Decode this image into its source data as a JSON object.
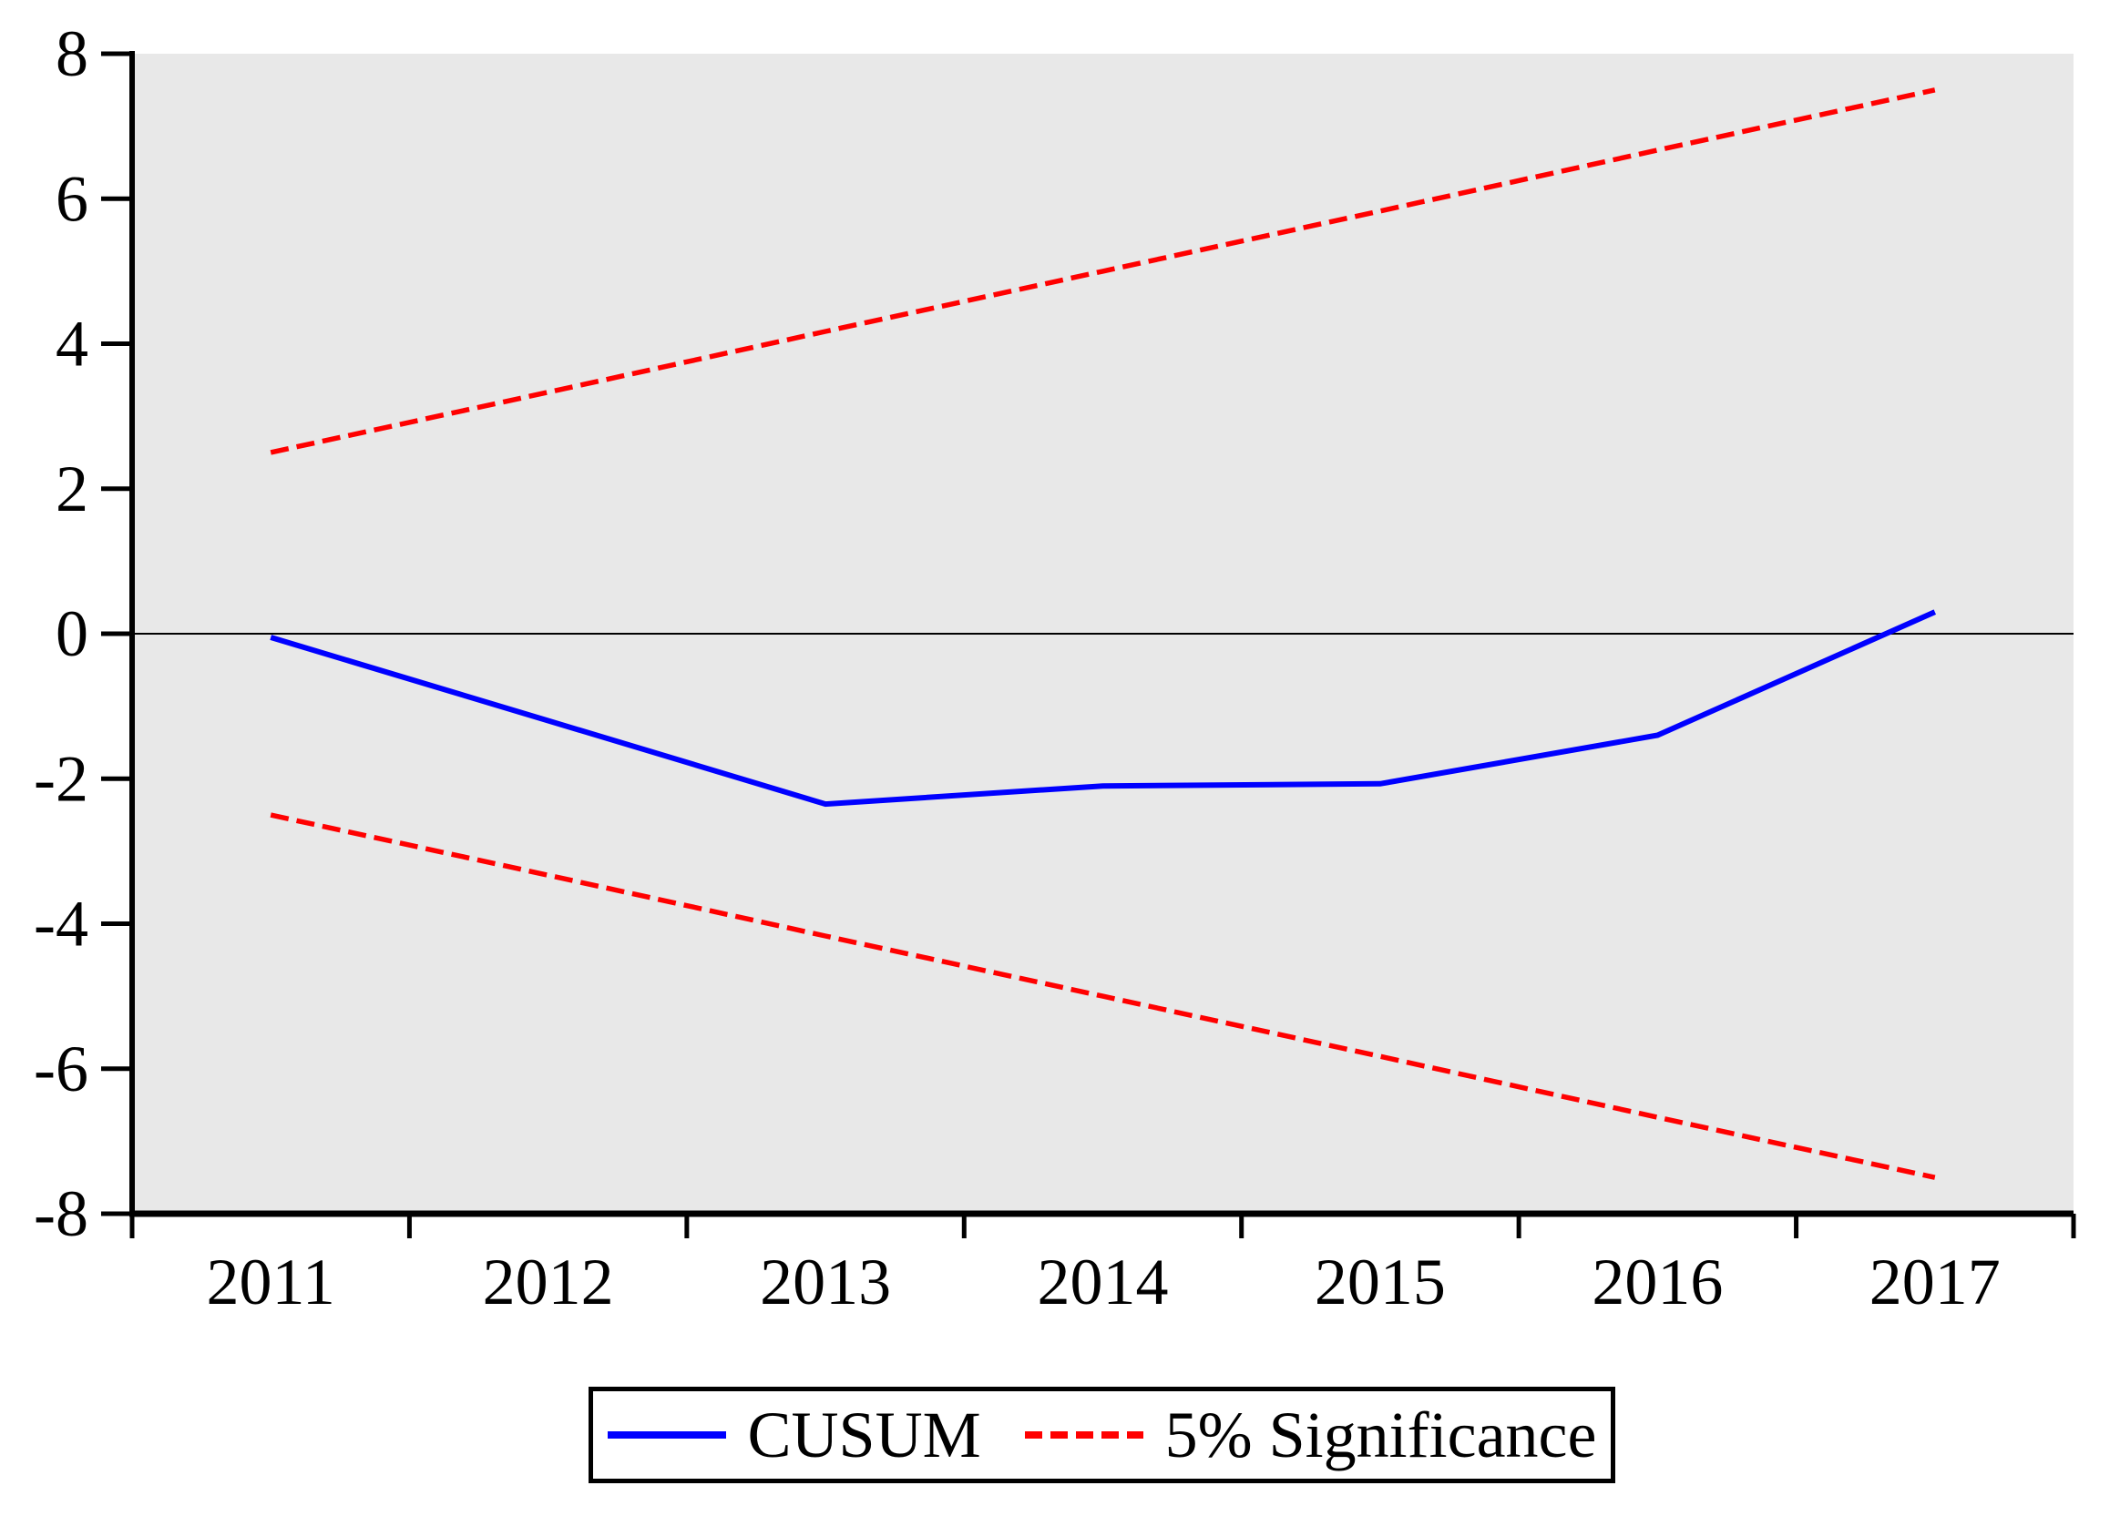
{
  "figure": {
    "title": "",
    "background_color": "#ffffff"
  },
  "chart_data": {
    "type": "line",
    "title": "",
    "xlabel": "",
    "ylabel": "",
    "categories": [
      "2011",
      "2012",
      "2013",
      "2014",
      "2015",
      "2016",
      "2017"
    ],
    "x": [
      2011,
      2012,
      2013,
      2014,
      2015,
      2016,
      2017
    ],
    "series": [
      {
        "name": "CUSUM",
        "style": "solid",
        "color": "#0000FF",
        "values": [
          -0.05,
          -1.2,
          -2.35,
          -2.1,
          -2.07,
          -1.4,
          0.3
        ]
      },
      {
        "name": "5% Significance (upper bound)",
        "style": "dashed",
        "color": "#FF0000",
        "values": [
          2.5,
          3.33,
          4.17,
          5.0,
          5.83,
          6.67,
          7.5
        ]
      },
      {
        "name": "5% Significance (lower bound)",
        "style": "dashed",
        "color": "#FF0000",
        "values": [
          -2.5,
          -3.33,
          -4.17,
          -5.0,
          -5.83,
          -6.67,
          -7.5
        ]
      }
    ],
    "ylim": [
      -8,
      8
    ],
    "y_ticks": [
      8,
      6,
      4,
      2,
      0,
      -2,
      -4,
      -6,
      -8
    ],
    "y_tick_labels": [
      "8",
      "6",
      "4",
      "2",
      "0",
      "-2",
      "-4",
      "-6",
      "-8"
    ],
    "x_tick_labels": [
      "2011",
      "2012",
      "2013",
      "2014",
      "2015",
      "2016",
      "2017"
    ],
    "grid": false,
    "zero_line": true,
    "plot_background": "#E8E8E8",
    "axis_color": "#000000",
    "legend_position": "bottom-center"
  },
  "legend": {
    "items": [
      {
        "label": "CUSUM",
        "line_style": "solid",
        "color": "#0000FF"
      },
      {
        "label": "5% Significance",
        "line_style": "dashed",
        "color": "#FF0000"
      }
    ]
  },
  "colors": {
    "cusum_line": "#0000FF",
    "significance_line": "#FF0000",
    "plot_background": "#E8E8E8",
    "axis": "#000000"
  }
}
